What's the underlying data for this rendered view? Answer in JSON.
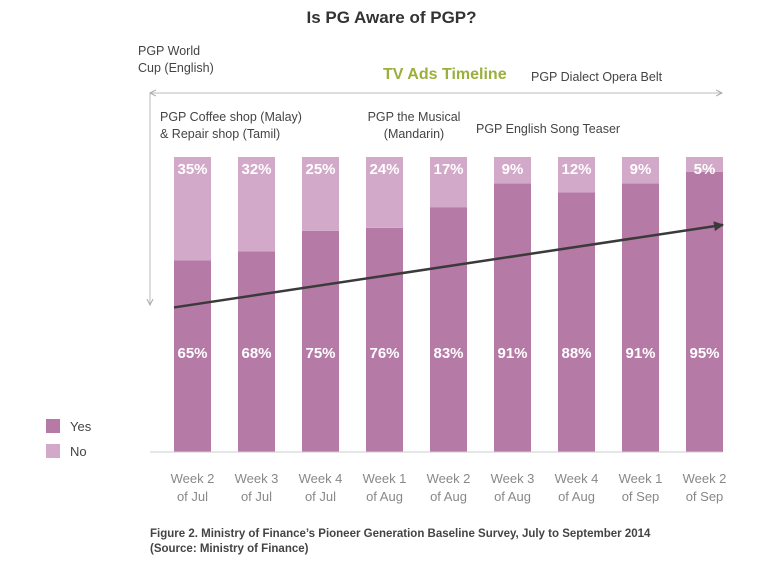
{
  "chart_data": {
    "type": "bar",
    "stacked": true,
    "title": "Is PG Aware of PGP?",
    "categories": [
      [
        "Week 2",
        "of Jul"
      ],
      [
        "Week 3",
        "of Jul"
      ],
      [
        "Week 4",
        "of Jul"
      ],
      [
        "Week 1",
        "of Aug"
      ],
      [
        "Week 2",
        "of Aug"
      ],
      [
        "Week 3",
        "of Aug"
      ],
      [
        "Week 4",
        "of Aug"
      ],
      [
        "Week 1",
        "of Sep"
      ],
      [
        "Week 2",
        "of Sep"
      ]
    ],
    "series": [
      {
        "name": "Yes",
        "color": "#b57aa6",
        "values": [
          65,
          68,
          75,
          76,
          83,
          91,
          88,
          91,
          95
        ]
      },
      {
        "name": "No",
        "color": "#d3a9c9",
        "values": [
          35,
          32,
          25,
          24,
          17,
          9,
          12,
          9,
          5
        ]
      }
    ],
    "value_suffix": "%",
    "ylim": [
      0,
      100
    ],
    "trend_arrow": {
      "from_category": 0,
      "to_category": 8,
      "from_value": 49,
      "to_value": 77
    },
    "legend_position": "left-bottom"
  },
  "annotations": {
    "timeline_title": "TV Ads Timeline",
    "world_cup_line1": "PGP World",
    "world_cup_line2": "Cup (English)",
    "dialect_opera": "PGP Dialect Opera Belt",
    "coffee_shop_line1": "PGP Coffee shop (Malay)",
    "coffee_shop_line2": "& Repair shop (Tamil)",
    "musical_line1": "PGP the Musical",
    "musical_line2": "(Mandarin)",
    "song_teaser": "PGP English Song Teaser"
  },
  "caption": {
    "line1": "Figure 2. Ministry of Finance’s Pioneer Generation Baseline Survey, July to September 2014",
    "line2": "(Source: Ministry of Finance)"
  }
}
